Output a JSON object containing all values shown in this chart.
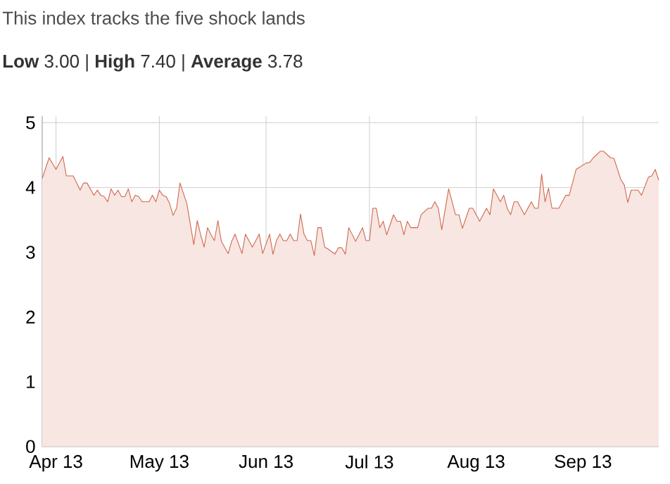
{
  "chart_data": {
    "type": "area",
    "title": "This index tracks the five shock lands",
    "subtitle": "**Low** 3.00 | **High** 7.40 | **Average** 3.78",
    "xlim": [
      "2013-03-28",
      "2013-09-23"
    ],
    "xticks": [
      {
        "value": "2013-04-01",
        "label": "Apr 13"
      },
      {
        "value": "2013-05-01",
        "label": "May 13"
      },
      {
        "value": "2013-06-01",
        "label": "Jun 13"
      },
      {
        "value": "2013-07-01",
        "label": "Jul 13"
      },
      {
        "value": "2013-08-01",
        "label": "Aug 13"
      },
      {
        "value": "2013-09-01",
        "label": "Sep 13"
      }
    ],
    "ylim": [
      0,
      5.1
    ],
    "yticks": [
      0,
      1,
      2,
      3,
      4,
      5
    ],
    "grid": true,
    "x": [
      "2013-03-28",
      "2013-03-30",
      "2013-04-01",
      "2013-04-03",
      "2013-04-04",
      "2013-04-06",
      "2013-04-08",
      "2013-04-09",
      "2013-04-10",
      "2013-04-12",
      "2013-04-13",
      "2013-04-14",
      "2013-04-15",
      "2013-04-16",
      "2013-04-17",
      "2013-04-18",
      "2013-04-19",
      "2013-04-20",
      "2013-04-21",
      "2013-04-22",
      "2013-04-23",
      "2013-04-24",
      "2013-04-25",
      "2013-04-26",
      "2013-04-28",
      "2013-04-29",
      "2013-04-30",
      "2013-05-01",
      "2013-05-02",
      "2013-05-03",
      "2013-05-04",
      "2013-05-05",
      "2013-05-06",
      "2013-05-07",
      "2013-05-08",
      "2013-05-09",
      "2013-05-11",
      "2013-05-12",
      "2013-05-13",
      "2013-05-14",
      "2013-05-15",
      "2013-05-16",
      "2013-05-17",
      "2013-05-18",
      "2013-05-19",
      "2013-05-21",
      "2013-05-22",
      "2013-05-23",
      "2013-05-25",
      "2013-05-26",
      "2013-05-28",
      "2013-05-30",
      "2013-05-31",
      "2013-06-02",
      "2013-06-03",
      "2013-06-04",
      "2013-06-05",
      "2013-06-06",
      "2013-06-07",
      "2013-06-08",
      "2013-06-09",
      "2013-06-10",
      "2013-06-11",
      "2013-06-12",
      "2013-06-13",
      "2013-06-14",
      "2013-06-15",
      "2013-06-16",
      "2013-06-17",
      "2013-06-18",
      "2013-06-19",
      "2013-06-21",
      "2013-06-22",
      "2013-06-23",
      "2013-06-24",
      "2013-06-25",
      "2013-06-27",
      "2013-06-29",
      "2013-06-30",
      "2013-07-01",
      "2013-07-02",
      "2013-07-03",
      "2013-07-04",
      "2013-07-05",
      "2013-07-06",
      "2013-07-08",
      "2013-07-09",
      "2013-07-10",
      "2013-07-11",
      "2013-07-12",
      "2013-07-13",
      "2013-07-15",
      "2013-07-16",
      "2013-07-18",
      "2013-07-19",
      "2013-07-20",
      "2013-07-21",
      "2013-07-22",
      "2013-07-24",
      "2013-07-26",
      "2013-07-27",
      "2013-07-28",
      "2013-07-30",
      "2013-07-31",
      "2013-08-02",
      "2013-08-04",
      "2013-08-05",
      "2013-08-06",
      "2013-08-07",
      "2013-08-08",
      "2013-08-09",
      "2013-08-10",
      "2013-08-11",
      "2013-08-12",
      "2013-08-13",
      "2013-08-15",
      "2013-08-17",
      "2013-08-18",
      "2013-08-19",
      "2013-08-20",
      "2013-08-21",
      "2013-08-22",
      "2013-08-23",
      "2013-08-25",
      "2013-08-27",
      "2013-08-28",
      "2013-08-30",
      "2013-09-02",
      "2013-09-03",
      "2013-09-04",
      "2013-09-06",
      "2013-09-07",
      "2013-09-09",
      "2013-09-10",
      "2013-09-12",
      "2013-09-13",
      "2013-09-14",
      "2013-09-15",
      "2013-09-17",
      "2013-09-18",
      "2013-09-20",
      "2013-09-21",
      "2013-09-22",
      "2013-09-23"
    ],
    "series": [
      {
        "color": "#d0654a",
        "values": [
          4.14,
          4.46,
          4.28,
          4.48,
          4.18,
          4.18,
          3.96,
          4.07,
          4.07,
          3.88,
          3.96,
          3.88,
          3.86,
          3.78,
          3.98,
          3.88,
          3.96,
          3.86,
          3.86,
          3.98,
          3.78,
          3.88,
          3.86,
          3.78,
          3.78,
          3.88,
          3.78,
          3.96,
          3.88,
          3.86,
          3.75,
          3.57,
          3.68,
          4.07,
          3.91,
          3.75,
          3.12,
          3.49,
          3.27,
          3.08,
          3.38,
          3.27,
          3.18,
          3.49,
          3.17,
          2.98,
          3.17,
          3.28,
          2.98,
          3.28,
          3.08,
          3.28,
          2.98,
          3.28,
          2.97,
          3.18,
          3.28,
          3.18,
          3.18,
          3.28,
          3.18,
          3.18,
          3.59,
          3.28,
          3.18,
          3.18,
          2.95,
          3.38,
          3.38,
          3.08,
          3.05,
          2.97,
          3.07,
          3.07,
          2.97,
          3.38,
          3.17,
          3.38,
          3.18,
          3.18,
          3.68,
          3.68,
          3.38,
          3.48,
          3.27,
          3.58,
          3.48,
          3.48,
          3.27,
          3.48,
          3.38,
          3.38,
          3.58,
          3.68,
          3.68,
          3.78,
          3.68,
          3.35,
          3.98,
          3.58,
          3.58,
          3.37,
          3.68,
          3.68,
          3.48,
          3.68,
          3.58,
          3.98,
          3.88,
          3.78,
          3.88,
          3.68,
          3.58,
          3.78,
          3.78,
          3.58,
          3.78,
          3.68,
          3.68,
          4.21,
          3.78,
          3.99,
          3.68,
          3.68,
          3.88,
          3.88,
          4.28,
          4.38,
          4.39,
          4.46,
          4.56,
          4.56,
          4.46,
          4.45,
          4.12,
          4.04,
          3.77,
          3.96,
          3.96,
          3.88,
          4.16,
          4.18,
          4.28,
          4.11
        ]
      }
    ]
  }
}
